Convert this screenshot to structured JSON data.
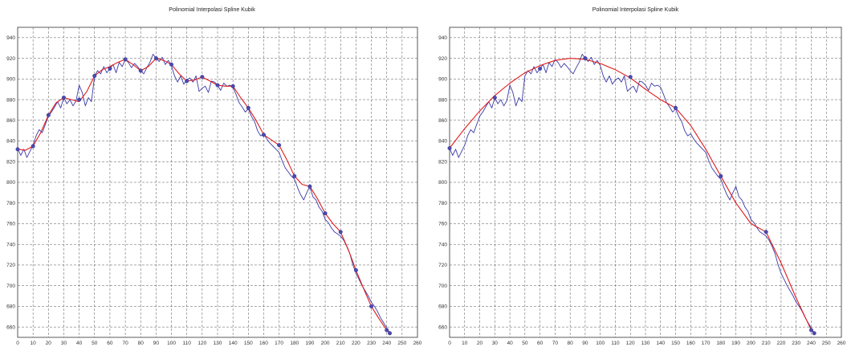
{
  "chart_data": [
    {
      "type": "line",
      "title": "Polinomial Interpolasi Spline Kubik",
      "xlabel": "",
      "ylabel": "",
      "xlim": [
        0,
        260
      ],
      "ylim": [
        650,
        950
      ],
      "x_ticks": [
        0,
        10,
        20,
        30,
        40,
        50,
        60,
        70,
        80,
        90,
        100,
        110,
        120,
        130,
        140,
        150,
        160,
        170,
        180,
        190,
        200,
        210,
        220,
        230,
        240,
        250,
        260
      ],
      "y_ticks": [
        660,
        680,
        700,
        720,
        740,
        760,
        780,
        800,
        820,
        840,
        860,
        880,
        900,
        920,
        940
      ],
      "grid": true,
      "series": [
        {
          "color": "#3a3aa8",
          "style": "line",
          "x": [
            0,
            2,
            4,
            6,
            8,
            10,
            12,
            14,
            16,
            18,
            20,
            22,
            24,
            26,
            28,
            30,
            32,
            34,
            36,
            38,
            40,
            42,
            44,
            46,
            48,
            50,
            52,
            54,
            56,
            58,
            60,
            62,
            64,
            66,
            68,
            70,
            72,
            74,
            76,
            78,
            80,
            82,
            84,
            86,
            88,
            90,
            92,
            94,
            96,
            98,
            100,
            102,
            104,
            106,
            108,
            110,
            112,
            114,
            116,
            118,
            120,
            122,
            124,
            126,
            128,
            130,
            132,
            134,
            136,
            138,
            140,
            142,
            144,
            146,
            148,
            150,
            152,
            154,
            156,
            158,
            160,
            162,
            164,
            166,
            168,
            170,
            172,
            174,
            176,
            178,
            180,
            182,
            184,
            186,
            188,
            190,
            192,
            194,
            196,
            198,
            200,
            202,
            204,
            206,
            208,
            210,
            212,
            214,
            216,
            218,
            220,
            222,
            224,
            226,
            228,
            230,
            232,
            234,
            236,
            238,
            240,
            242
          ],
          "y": [
            833,
            826,
            832,
            824,
            830,
            836,
            845,
            851,
            848,
            856,
            864,
            868,
            873,
            878,
            872,
            882,
            876,
            880,
            874,
            879,
            894,
            887,
            874,
            882,
            878,
            903,
            908,
            905,
            912,
            906,
            910,
            914,
            906,
            916,
            912,
            919,
            916,
            911,
            915,
            912,
            908,
            905,
            911,
            916,
            924,
            920,
            917,
            921,
            914,
            918,
            913,
            903,
            897,
            903,
            895,
            899,
            901,
            897,
            903,
            888,
            891,
            893,
            887,
            898,
            897,
            894,
            889,
            896,
            893,
            894,
            892,
            885,
            877,
            873,
            868,
            871,
            864,
            859,
            850,
            845,
            847,
            842,
            838,
            835,
            832,
            829,
            821,
            814,
            810,
            806,
            803,
            795,
            788,
            783,
            790,
            796,
            786,
            783,
            776,
            772,
            764,
            761,
            756,
            752,
            750,
            748,
            744,
            738,
            731,
            720,
            712,
            706,
            700,
            695,
            690,
            684,
            680,
            675,
            669,
            664,
            659,
            654
          ]
        },
        {
          "color": "#e01b1b",
          "style": "line",
          "x": [
            0,
            5,
            10,
            15,
            20,
            25,
            30,
            35,
            40,
            45,
            50,
            55,
            60,
            65,
            70,
            75,
            80,
            85,
            90,
            95,
            100,
            105,
            110,
            115,
            120,
            125,
            130,
            135,
            140,
            145,
            150,
            155,
            160,
            165,
            170,
            175,
            180,
            185,
            190,
            195,
            200,
            205,
            210,
            215,
            220,
            225,
            230,
            235,
            240,
            242
          ],
          "y": [
            832,
            831,
            835,
            848,
            865,
            877,
            882,
            880,
            878,
            888,
            903,
            909,
            912,
            916,
            919,
            914,
            908,
            912,
            920,
            918,
            914,
            905,
            898,
            899,
            902,
            898,
            894,
            893,
            893,
            882,
            872,
            860,
            846,
            841,
            836,
            822,
            806,
            798,
            796,
            784,
            770,
            760,
            752,
            735,
            715,
            697,
            680,
            668,
            657,
            654
          ]
        },
        {
          "color": "#4a4ab0",
          "style": "marker",
          "x": [
            0,
            10,
            20,
            30,
            40,
            50,
            60,
            70,
            80,
            90,
            100,
            110,
            120,
            130,
            140,
            150,
            160,
            170,
            180,
            190,
            200,
            210,
            220,
            230,
            240,
            242
          ],
          "y": [
            832,
            835,
            865,
            882,
            880,
            903,
            910,
            919,
            908,
            920,
            914,
            898,
            902,
            894,
            893,
            872,
            846,
            836,
            806,
            796,
            770,
            752,
            715,
            680,
            657,
            654
          ]
        }
      ]
    },
    {
      "type": "line",
      "title": "Polinomial Interpolasi Spline Kubik",
      "xlabel": "",
      "ylabel": "",
      "xlim": [
        0,
        260
      ],
      "ylim": [
        650,
        950
      ],
      "x_ticks": [
        0,
        10,
        20,
        30,
        40,
        50,
        60,
        70,
        80,
        90,
        100,
        110,
        120,
        130,
        140,
        150,
        160,
        170,
        180,
        190,
        200,
        210,
        220,
        230,
        240,
        250,
        260
      ],
      "y_ticks": [
        660,
        680,
        700,
        720,
        740,
        760,
        780,
        800,
        820,
        840,
        860,
        880,
        900,
        920,
        940
      ],
      "grid": true,
      "series": [
        {
          "color": "#3a3aa8",
          "style": "line",
          "x": [
            0,
            2,
            4,
            6,
            8,
            10,
            12,
            14,
            16,
            18,
            20,
            22,
            24,
            26,
            28,
            30,
            32,
            34,
            36,
            38,
            40,
            42,
            44,
            46,
            48,
            50,
            52,
            54,
            56,
            58,
            60,
            62,
            64,
            66,
            68,
            70,
            72,
            74,
            76,
            78,
            80,
            82,
            84,
            86,
            88,
            90,
            92,
            94,
            96,
            98,
            100,
            102,
            104,
            106,
            108,
            110,
            112,
            114,
            116,
            118,
            120,
            122,
            124,
            126,
            128,
            130,
            132,
            134,
            136,
            138,
            140,
            142,
            144,
            146,
            148,
            150,
            152,
            154,
            156,
            158,
            160,
            162,
            164,
            166,
            168,
            170,
            172,
            174,
            176,
            178,
            180,
            182,
            184,
            186,
            188,
            190,
            192,
            194,
            196,
            198,
            200,
            202,
            204,
            206,
            208,
            210,
            212,
            214,
            216,
            218,
            220,
            222,
            224,
            226,
            228,
            230,
            232,
            234,
            236,
            238,
            240,
            242
          ],
          "y": [
            833,
            826,
            832,
            824,
            830,
            836,
            845,
            851,
            848,
            856,
            864,
            868,
            873,
            878,
            872,
            882,
            876,
            880,
            874,
            879,
            894,
            887,
            874,
            882,
            878,
            903,
            908,
            905,
            912,
            906,
            910,
            914,
            906,
            916,
            912,
            919,
            916,
            911,
            915,
            912,
            908,
            905,
            911,
            916,
            924,
            920,
            917,
            921,
            914,
            918,
            913,
            903,
            897,
            903,
            895,
            899,
            901,
            897,
            903,
            888,
            891,
            893,
            887,
            898,
            897,
            894,
            889,
            896,
            893,
            894,
            892,
            885,
            877,
            873,
            868,
            871,
            864,
            859,
            850,
            845,
            847,
            842,
            838,
            835,
            832,
            829,
            821,
            814,
            810,
            806,
            803,
            795,
            788,
            783,
            790,
            796,
            786,
            783,
            776,
            772,
            764,
            761,
            756,
            752,
            750,
            748,
            744,
            738,
            731,
            720,
            712,
            706,
            700,
            695,
            690,
            684,
            680,
            675,
            669,
            664,
            659,
            654
          ]
        },
        {
          "color": "#e01b1b",
          "style": "line",
          "x": [
            0,
            10,
            20,
            30,
            40,
            50,
            60,
            70,
            80,
            90,
            100,
            110,
            120,
            130,
            140,
            150,
            160,
            170,
            180,
            190,
            200,
            210,
            220,
            230,
            240,
            242
          ],
          "y": [
            833,
            852,
            869,
            884,
            896,
            906,
            913,
            918,
            920,
            919,
            915,
            909,
            901,
            890,
            880,
            872,
            855,
            832,
            806,
            780,
            760,
            752,
            722,
            688,
            657,
            654
          ]
        },
        {
          "color": "#4a4ab0",
          "style": "marker",
          "x": [
            0,
            30,
            60,
            90,
            120,
            150,
            180,
            210,
            240,
            242
          ],
          "y": [
            833,
            882,
            910,
            920,
            902,
            872,
            806,
            752,
            657,
            654
          ]
        }
      ]
    }
  ]
}
